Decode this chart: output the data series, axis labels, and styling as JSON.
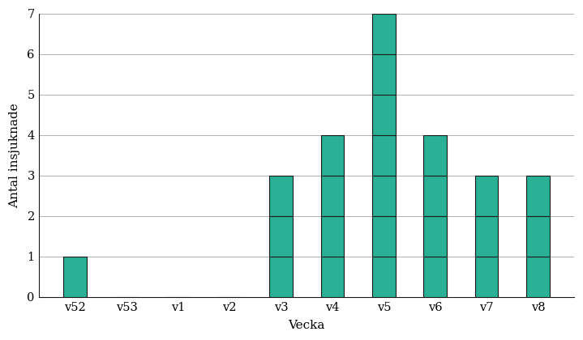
{
  "categories": [
    "v52",
    "v53",
    "v1",
    "v2",
    "v3",
    "v4",
    "v5",
    "v6",
    "v7",
    "v8"
  ],
  "values": [
    1,
    0,
    0,
    0,
    3,
    4,
    7,
    4,
    3,
    3
  ],
  "bar_color": "#2ab095",
  "bar_edgecolor": "#1a1a1a",
  "bar_linewidth": 0.8,
  "grid_color": "#b0b0b0",
  "grid_linewidth": 0.7,
  "background_color": "#ffffff",
  "xlabel": "Vecka",
  "ylabel": "Antal insjuknade",
  "ylim": [
    0,
    7
  ],
  "yticks": [
    0,
    1,
    2,
    3,
    4,
    5,
    6,
    7
  ],
  "bar_width": 0.45,
  "label_fontsize": 11,
  "tick_fontsize": 10.5,
  "figsize": [
    7.19,
    4.2
  ],
  "dpi": 100
}
